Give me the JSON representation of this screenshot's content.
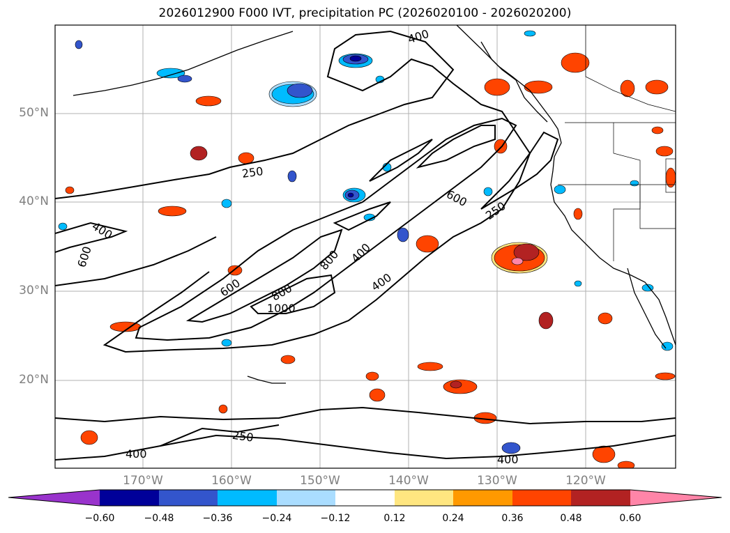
{
  "title": "2026012900 F000 IVT, precipitation PC (2026020100 - 2026020200)",
  "map": {
    "lat_ticks": [
      "50°N",
      "40°N",
      "30°N",
      "20°N"
    ],
    "lon_ticks": [
      "170°W",
      "160°W",
      "150°W",
      "140°W",
      "130°W",
      "120°W"
    ],
    "ivt_contour_labels": [
      "400",
      "250",
      "600",
      "400",
      "600",
      "250",
      "800",
      "400",
      "400",
      "600",
      "800",
      "1000",
      "250",
      "400",
      "400"
    ],
    "grid": true
  },
  "colorbar": {
    "ticks": [
      "−0.60",
      "−0.48",
      "−0.36",
      "−0.24",
      "−0.12",
      "0.12",
      "0.24",
      "0.36",
      "0.48",
      "0.60"
    ],
    "colors": [
      "#9933cc",
      "#000099",
      "#3355cc",
      "#00bbff",
      "#aaddff",
      "#ffffff",
      "#ffe680",
      "#ff9900",
      "#ff4400",
      "#b22222",
      "#ff85a8"
    ]
  }
}
